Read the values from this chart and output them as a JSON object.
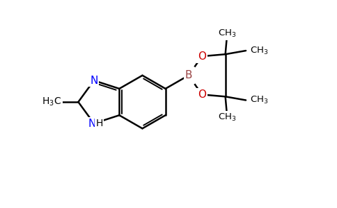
{
  "background_color": "#ffffff",
  "bond_color": "#000000",
  "bond_width": 1.8,
  "atom_colors": {
    "N": "#0000ff",
    "O": "#cc0000",
    "B": "#994444",
    "C": "#000000"
  },
  "font_size": 10,
  "sub_font_size": 7.5
}
